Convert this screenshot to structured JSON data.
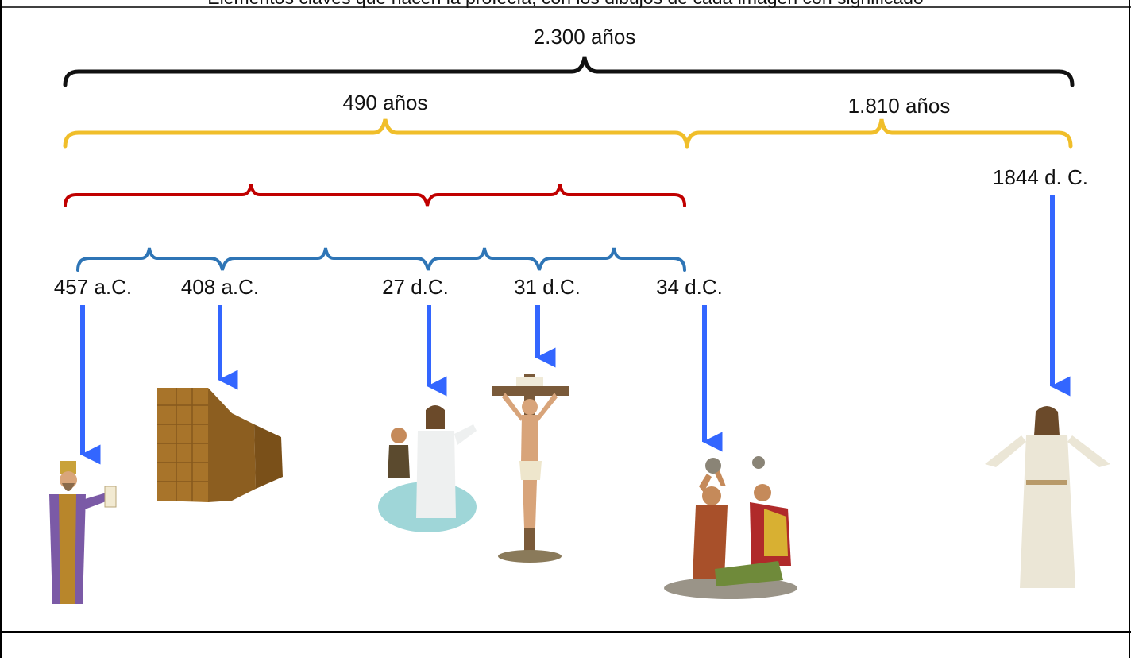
{
  "caption": "Elementos claves que hacen la profecía, con los dibujos de cada imagen con significado",
  "spans": {
    "total": "2.300 años",
    "seventy_weeks": "490 años",
    "remaining": "1.810 años"
  },
  "dates": {
    "d457": "457 a.C.",
    "d408": "408 a.C.",
    "d27": "27 d.C.",
    "d31": "31 d.C.",
    "d34": "34 d.C.",
    "d1844": "1844 d. C."
  },
  "illustrations": [
    {
      "icon": "king-decree-icon",
      "meaning": "decree"
    },
    {
      "icon": "city-wall-icon",
      "meaning": "wall"
    },
    {
      "icon": "baptism-icon",
      "meaning": "baptism"
    },
    {
      "icon": "crucifixion-icon",
      "meaning": "cross"
    },
    {
      "icon": "stoning-icon",
      "meaning": "stoning"
    },
    {
      "icon": "risen-christ-icon",
      "meaning": "christ"
    }
  ],
  "colors": {
    "black_brace": "#111111",
    "yellow_brace": "#f0be2a",
    "red_brace": "#c00000",
    "blue_brace": "#2e75b6",
    "arrow": "#3366ff"
  }
}
